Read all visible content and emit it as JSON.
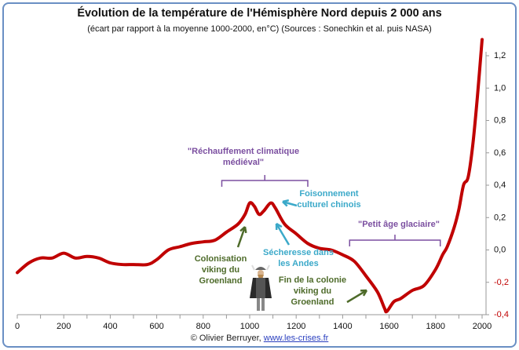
{
  "chart_data": {
    "type": "line",
    "title": "Évolution de la température de l'Hémisphère Nord depuis 2 000 ans",
    "subtitle": "(écart par rapport à la moyenne 1000-2000, en°C) (Sources : Sonechkin et al. puis NASA)",
    "xlim": [
      0,
      2000
    ],
    "ylim": [
      -0.4,
      1.3
    ],
    "x_ticks": [
      "0",
      "200",
      "400",
      "600",
      "800",
      "1000",
      "1200",
      "1400",
      "1600",
      "1800",
      "2000"
    ],
    "y_ticks": [
      "-0,4",
      "-0,2",
      "0,0",
      "0,2",
      "0,4",
      "0,6",
      "0,8",
      "1,0",
      "1,2"
    ],
    "y_tick_values": [
      -0.4,
      -0.2,
      0,
      0.2,
      0.4,
      0.6,
      0.8,
      1.0,
      1.2
    ],
    "grid": false,
    "line_color": "#c00000",
    "negative_tick_color": "#c00000",
    "x": [
      0,
      50,
      100,
      150,
      200,
      250,
      300,
      350,
      400,
      450,
      500,
      560,
      600,
      650,
      700,
      750,
      800,
      850,
      900,
      950,
      980,
      1000,
      1020,
      1040,
      1060,
      1090,
      1110,
      1150,
      1200,
      1250,
      1300,
      1350,
      1400,
      1450,
      1500,
      1550,
      1580,
      1590,
      1620,
      1650,
      1700,
      1750,
      1800,
      1830,
      1850,
      1880,
      1900,
      1920,
      1940,
      1960,
      1980,
      2000
    ],
    "y": [
      -0.14,
      -0.08,
      -0.05,
      -0.05,
      -0.02,
      -0.05,
      -0.04,
      -0.05,
      -0.08,
      -0.09,
      -0.09,
      -0.09,
      -0.06,
      0.0,
      0.02,
      0.04,
      0.05,
      0.06,
      0.11,
      0.16,
      0.22,
      0.29,
      0.27,
      0.22,
      0.24,
      0.29,
      0.26,
      0.16,
      0.1,
      0.04,
      0.01,
      0.0,
      -0.03,
      -0.07,
      -0.16,
      -0.26,
      -0.36,
      -0.38,
      -0.32,
      -0.3,
      -0.25,
      -0.22,
      -0.12,
      -0.03,
      0.02,
      0.14,
      0.25,
      0.4,
      0.45,
      0.65,
      0.95,
      1.3
    ],
    "annotations": [
      {
        "text": "\"Réchauffement climatique médiéval\"",
        "color": "#7b4fa0",
        "range": [
          880,
          1250
        ]
      },
      {
        "text": "Foisonnement culturel chinois",
        "color": "#3ba9c9"
      },
      {
        "text": "\"Petit âge glaciaire\"",
        "color": "#7b4fa0",
        "range": [
          1430,
          1820
        ]
      },
      {
        "text": "Sécheresse dans les Andes",
        "color": "#3ba9c9"
      },
      {
        "text": "Colonisation viking du Groenland",
        "color": "#4e6b2a"
      },
      {
        "text": "Fin de la colonie viking du Groenland",
        "color": "#4e6b2a"
      }
    ]
  },
  "credit": {
    "prefix": "© Olivier Berruyer, ",
    "link": "www.les-crises.fr"
  },
  "icons": {
    "viking": "viking-figure-icon"
  }
}
